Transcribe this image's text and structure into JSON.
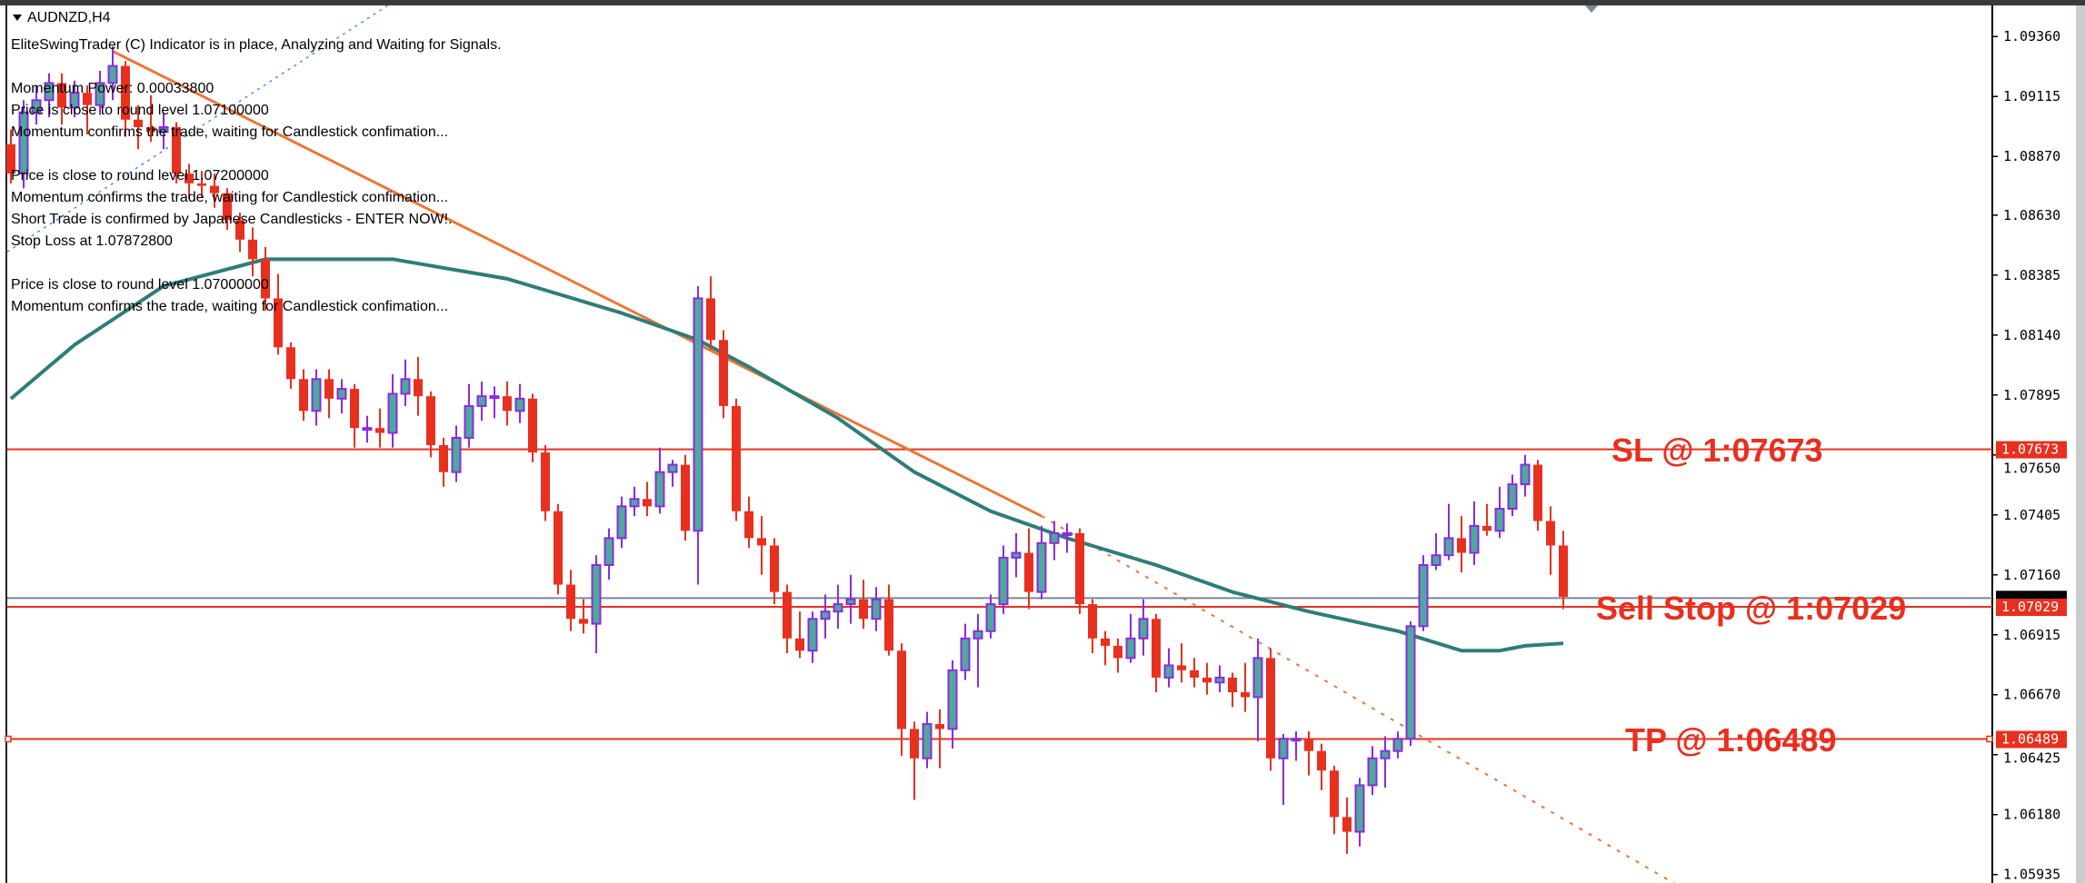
{
  "window": {
    "symbol_title": "AUDNZD,H4"
  },
  "indicator_messages": [
    "EliteSwingTrader (C) Indicator is in place, Analyzing and Waiting for Signals.",
    "Momentum Power: 0.00033800",
    "Price is close to round level 1.07100000",
    "Momentum confirms the trade, waiting for Candlestick confimation...",
    "Price is close to round level 1.07200000",
    "Momentum confirms the trade, waiting for Candlestick confimation...",
    "Short Trade is confirmed by Japanese Candlesticks - ENTER NOW!.",
    "Stop Loss at 1.07872800",
    "Price is close to round level 1.07000000",
    "Momentum confirms the trade, waiting for Candlestick confimation..."
  ],
  "annotations": {
    "sl": "SL @ 1:07673",
    "sell_stop": "Sell Stop @ 1:07029",
    "tp": "TP @ 1:06489"
  },
  "colors": {
    "bull_body": "#4fa89c",
    "bull_outline": "#8a2be2",
    "bear": "#e8301f",
    "ma": "#2e7d78",
    "trendline": "#e8773a",
    "level_line": "#e8301f",
    "current_price_line": "#7b8794",
    "blue_dotted": "#4a90e2"
  },
  "chart_data": {
    "type": "candlestick",
    "ylim": [
      1.0585,
      1.095
    ],
    "y_ticks": [
      "1.09360",
      "1.09115",
      "1.08870",
      "1.08630",
      "1.08385",
      "1.08140",
      "1.07895",
      "1.07650",
      "1.07405",
      "1.07160",
      "1.06915",
      "1.06670",
      "1.06425",
      "1.06180",
      "1.05935"
    ],
    "levels": [
      {
        "name": "sl",
        "price": 1.07673,
        "label": "1.07673"
      },
      {
        "name": "sell-stop",
        "price": 1.07029,
        "label": "1.07029"
      },
      {
        "name": "tp",
        "price": 1.06489,
        "label": "1.06489"
      }
    ],
    "current_price": 1.07065,
    "ohlc": [
      [
        1.0892,
        1.0898,
        1.0876,
        1.088
      ],
      [
        1.088,
        1.091,
        1.0874,
        1.0905
      ],
      [
        1.0905,
        1.0916,
        1.09,
        1.091
      ],
      [
        1.091,
        1.0921,
        1.0903,
        1.0917
      ],
      [
        1.0917,
        1.0921,
        1.09,
        1.0907
      ],
      [
        1.0907,
        1.0918,
        1.0903,
        1.0913
      ],
      [
        1.0913,
        1.0916,
        1.0896,
        1.0908
      ],
      [
        1.0908,
        1.0922,
        1.0904,
        1.0917
      ],
      [
        1.0917,
        1.0932,
        1.091,
        1.0924
      ],
      [
        1.0924,
        1.0926,
        1.0895,
        1.0902
      ],
      [
        1.0902,
        1.0908,
        1.089,
        1.0899
      ],
      [
        1.0899,
        1.0912,
        1.0893,
        1.0897
      ],
      [
        1.0897,
        1.0905,
        1.089,
        1.0899
      ],
      [
        1.0899,
        1.0901,
        1.0876,
        1.088
      ],
      [
        1.088,
        1.0884,
        1.087,
        1.0876
      ],
      [
        1.0876,
        1.0881,
        1.087,
        1.0875
      ],
      [
        1.0875,
        1.088,
        1.0866,
        1.0872
      ],
      [
        1.0872,
        1.0874,
        1.0857,
        1.0861
      ],
      [
        1.0861,
        1.0864,
        1.0848,
        1.0853
      ],
      [
        1.0853,
        1.0858,
        1.0838,
        1.0845
      ],
      [
        1.0845,
        1.085,
        1.0824,
        1.0829
      ],
      [
        1.0829,
        1.0839,
        1.0806,
        1.0809
      ],
      [
        1.0809,
        1.0811,
        1.0792,
        1.0796
      ],
      [
        1.0796,
        1.08,
        1.0779,
        1.0783
      ],
      [
        1.0783,
        1.08,
        1.0777,
        1.0796
      ],
      [
        1.0796,
        1.08,
        1.078,
        1.0788
      ],
      [
        1.0788,
        1.0796,
        1.0782,
        1.0792
      ],
      [
        1.0792,
        1.0794,
        1.0768,
        1.0776
      ],
      [
        1.0776,
        1.0781,
        1.077,
        1.0776
      ],
      [
        1.0776,
        1.0784,
        1.0768,
        1.0774
      ],
      [
        1.0774,
        1.0798,
        1.0768,
        1.079
      ],
      [
        1.079,
        1.0804,
        1.0785,
        1.0796
      ],
      [
        1.0796,
        1.0805,
        1.0781,
        1.0789
      ],
      [
        1.0789,
        1.0791,
        1.0764,
        1.0769
      ],
      [
        1.0769,
        1.0772,
        1.0752,
        1.0758
      ],
      [
        1.0758,
        1.0777,
        1.0754,
        1.0772
      ],
      [
        1.0772,
        1.0794,
        1.0768,
        1.0785
      ],
      [
        1.0785,
        1.0795,
        1.0779,
        1.0789
      ],
      [
        1.0789,
        1.0793,
        1.078,
        1.0789
      ],
      [
        1.0789,
        1.0795,
        1.0777,
        1.0783
      ],
      [
        1.0783,
        1.0794,
        1.0778,
        1.0788
      ],
      [
        1.0788,
        1.079,
        1.0762,
        1.0766
      ],
      [
        1.0766,
        1.0769,
        1.0738,
        1.0742
      ],
      [
        1.0742,
        1.0745,
        1.0708,
        1.0712
      ],
      [
        1.0712,
        1.0718,
        1.0693,
        1.0698
      ],
      [
        1.0698,
        1.0706,
        1.0692,
        1.0696
      ],
      [
        1.0696,
        1.0724,
        1.0684,
        1.072
      ],
      [
        1.072,
        1.0735,
        1.0714,
        1.0731
      ],
      [
        1.0731,
        1.0748,
        1.0727,
        1.0744
      ],
      [
        1.0744,
        1.0752,
        1.074,
        1.0747
      ],
      [
        1.0747,
        1.0754,
        1.074,
        1.0744
      ],
      [
        1.0744,
        1.0768,
        1.0741,
        1.0758
      ],
      [
        1.0758,
        1.0763,
        1.0752,
        1.0761
      ],
      [
        1.0761,
        1.0765,
        1.073,
        1.0734
      ],
      [
        1.0734,
        1.0834,
        1.0712,
        1.0829
      ],
      [
        1.0829,
        1.0838,
        1.0808,
        1.0812
      ],
      [
        1.0812,
        1.0816,
        1.078,
        1.0785
      ],
      [
        1.0785,
        1.0788,
        1.0738,
        1.0742
      ],
      [
        1.0742,
        1.0748,
        1.0727,
        1.0731
      ],
      [
        1.0731,
        1.074,
        1.0716,
        1.0728
      ],
      [
        1.0728,
        1.0731,
        1.0704,
        1.0709
      ],
      [
        1.0709,
        1.0712,
        1.0684,
        1.069
      ],
      [
        1.069,
        1.0701,
        1.0682,
        1.0685
      ],
      [
        1.0685,
        1.0701,
        1.068,
        1.0698
      ],
      [
        1.0698,
        1.0708,
        1.069,
        1.0701
      ],
      [
        1.0701,
        1.0712,
        1.0694,
        1.0704
      ],
      [
        1.0704,
        1.0716,
        1.0696,
        1.0706
      ],
      [
        1.0706,
        1.0714,
        1.0694,
        1.0698
      ],
      [
        1.0698,
        1.0711,
        1.0693,
        1.0706
      ],
      [
        1.0706,
        1.0712,
        1.0683,
        1.0685
      ],
      [
        1.0685,
        1.0688,
        1.0642,
        1.0653
      ],
      [
        1.0653,
        1.0656,
        1.0624,
        1.0641
      ],
      [
        1.0641,
        1.066,
        1.0637,
        1.0655
      ],
      [
        1.0655,
        1.0661,
        1.0637,
        1.0653
      ],
      [
        1.0653,
        1.0681,
        1.0645,
        1.0677
      ],
      [
        1.0677,
        1.0696,
        1.0673,
        1.069
      ],
      [
        1.069,
        1.07,
        1.067,
        1.0693
      ],
      [
        1.0693,
        1.0708,
        1.069,
        1.0704
      ],
      [
        1.0704,
        1.0728,
        1.07,
        1.0723
      ],
      [
        1.0723,
        1.0733,
        1.0715,
        1.0725
      ],
      [
        1.0725,
        1.0735,
        1.0702,
        1.0709
      ],
      [
        1.0709,
        1.0736,
        1.0706,
        1.0729
      ],
      [
        1.0729,
        1.0738,
        1.0722,
        1.0733
      ],
      [
        1.0733,
        1.0737,
        1.0725,
        1.0733
      ],
      [
        1.0733,
        1.0735,
        1.07,
        1.0704
      ],
      [
        1.0704,
        1.0706,
        1.0684,
        1.069
      ],
      [
        1.069,
        1.0693,
        1.0679,
        1.0687
      ],
      [
        1.0687,
        1.069,
        1.0676,
        1.0682
      ],
      [
        1.0682,
        1.07,
        1.068,
        1.069
      ],
      [
        1.069,
        1.0706,
        1.0683,
        1.0698
      ],
      [
        1.0698,
        1.07,
        1.0668,
        1.0674
      ],
      [
        1.0674,
        1.0686,
        1.067,
        1.0679
      ],
      [
        1.0679,
        1.0688,
        1.0672,
        1.0677
      ],
      [
        1.0677,
        1.0682,
        1.067,
        1.0674
      ],
      [
        1.0674,
        1.068,
        1.0667,
        1.0672
      ],
      [
        1.0672,
        1.0679,
        1.0668,
        1.0674
      ],
      [
        1.0674,
        1.0676,
        1.0662,
        1.0668
      ],
      [
        1.0668,
        1.068,
        1.066,
        1.0666
      ],
      [
        1.0666,
        1.069,
        1.0648,
        1.0682
      ],
      [
        1.0682,
        1.0686,
        1.0636,
        1.0641
      ],
      [
        1.0641,
        1.0651,
        1.0622,
        1.0649
      ],
      [
        1.0649,
        1.0652,
        1.064,
        1.0649
      ],
      [
        1.0649,
        1.0652,
        1.0634,
        1.0644
      ],
      [
        1.0644,
        1.0647,
        1.0628,
        1.0636
      ],
      [
        1.0636,
        1.0638,
        1.061,
        1.0617
      ],
      [
        1.0617,
        1.0625,
        1.0602,
        1.0611
      ],
      [
        1.0611,
        1.0633,
        1.0605,
        1.063
      ],
      [
        1.063,
        1.0646,
        1.0626,
        1.0641
      ],
      [
        1.0641,
        1.065,
        1.0629,
        1.0644
      ],
      [
        1.0644,
        1.0652,
        1.0641,
        1.0649
      ],
      [
        1.0649,
        1.0697,
        1.0646,
        1.0695
      ],
      [
        1.0695,
        1.0724,
        1.0693,
        1.072
      ],
      [
        1.072,
        1.0733,
        1.0718,
        1.0724
      ],
      [
        1.0724,
        1.0745,
        1.0722,
        1.0731
      ],
      [
        1.0731,
        1.074,
        1.0717,
        1.0725
      ],
      [
        1.0725,
        1.0746,
        1.072,
        1.0736
      ],
      [
        1.0736,
        1.0745,
        1.0732,
        1.0734
      ],
      [
        1.0734,
        1.0752,
        1.0731,
        1.0743
      ],
      [
        1.0743,
        1.0757,
        1.074,
        1.0753
      ],
      [
        1.0753,
        1.0765,
        1.0748,
        1.0761
      ],
      [
        1.0761,
        1.0763,
        1.0734,
        1.0738
      ],
      [
        1.0738,
        1.0744,
        1.0716,
        1.0728
      ],
      [
        1.0728,
        1.0734,
        1.0702,
        1.0707
      ]
    ],
    "moving_average": [
      [
        0,
        1.0788
      ],
      [
        5,
        1.081
      ],
      [
        12,
        1.0834
      ],
      [
        20,
        1.0845
      ],
      [
        30,
        1.0845
      ],
      [
        39,
        1.0837
      ],
      [
        48,
        1.0823
      ],
      [
        54,
        1.0812
      ],
      [
        58,
        1.0801
      ],
      [
        65,
        1.078
      ],
      [
        71,
        1.0758
      ],
      [
        77,
        1.0742
      ],
      [
        83,
        1.0731
      ],
      [
        90,
        1.072
      ],
      [
        96,
        1.0709
      ],
      [
        102,
        1.0701
      ],
      [
        109,
        1.0693
      ],
      [
        114,
        1.0685
      ],
      [
        117,
        1.0685
      ],
      [
        119,
        1.0687
      ],
      [
        122,
        1.0688
      ]
    ],
    "trendline": {
      "start": [
        8,
        1.093
      ],
      "solid_end": [
        81,
        1.074
      ],
      "dashed_end": [
        135,
        1.0577
      ]
    },
    "blue_dotted_line": {
      "start": [
        -0.3,
        1.0848
      ],
      "end": [
        29.7,
        1.0949
      ]
    }
  }
}
